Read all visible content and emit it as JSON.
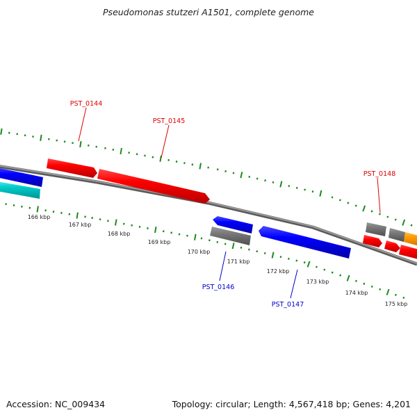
{
  "title": "Pseudomonas stutzeri A1501, complete genome",
  "footer": {
    "accession": "Accession: NC_009434",
    "summary": "Topology: circular; Length: 4,567,418 bp; Genes: 4,201"
  },
  "colors": {
    "backbone": "#808080",
    "tick": "#1a8a1a",
    "forward_label": "#dd0000",
    "reverse_label": "#0000cc"
  },
  "kbp_labels": [
    "166 kbp",
    "167 kbp",
    "168 kbp",
    "169 kbp",
    "170 kbp",
    "171 kbp",
    "172 kbp",
    "173 kbp",
    "174 kbp",
    "175 kbp"
  ],
  "genes": [
    {
      "label": "PST_0144",
      "strand": "+",
      "color": "#ee0000"
    },
    {
      "label": "PST_0145",
      "strand": "+",
      "color": "#ee0000"
    },
    {
      "label": "PST_0146",
      "strand": "-",
      "color": "#0000ee"
    },
    {
      "label": "PST_0147",
      "strand": "-",
      "color": "#0000ee"
    },
    {
      "label": "PST_0148",
      "strand": "+",
      "color": "#808080"
    }
  ]
}
